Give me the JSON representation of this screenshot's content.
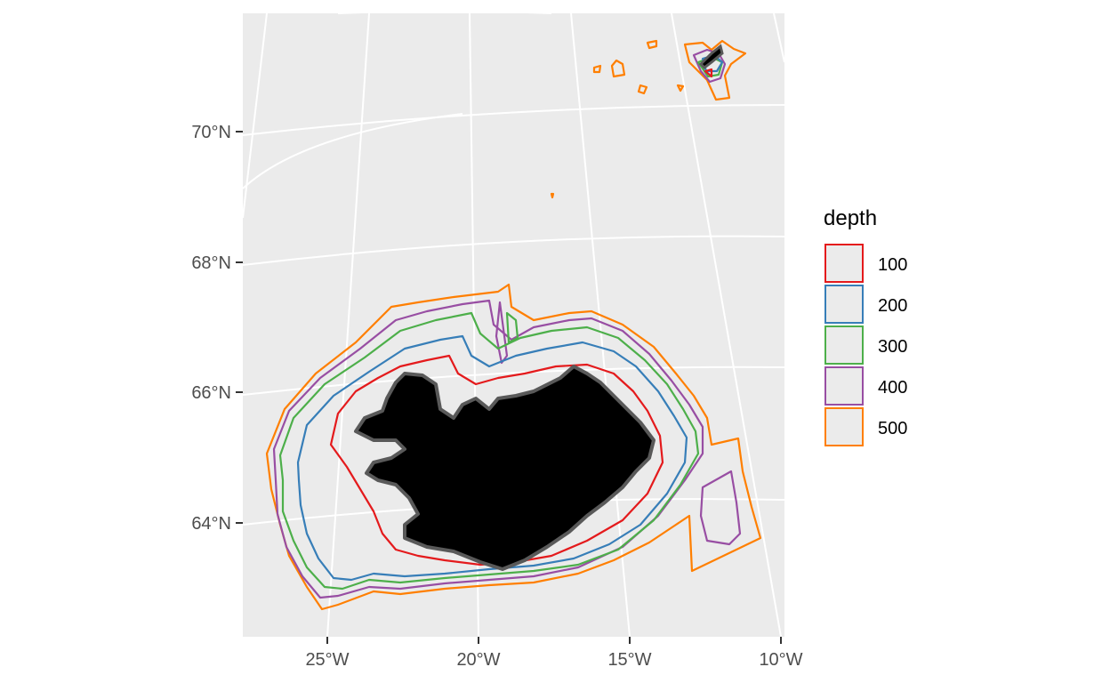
{
  "map": {
    "panel_background": "#ebebeb",
    "grid_color": "#ffffff",
    "land_color": "#000000",
    "land_edge_color": "#595959",
    "x_axis_labels": [
      "25°W",
      "20°W",
      "15°W",
      "10°W"
    ],
    "y_axis_labels": [
      "70°N",
      "68°N",
      "66°N",
      "64°N"
    ]
  },
  "legend": {
    "title": "depth",
    "items": [
      {
        "label": "100",
        "color": "#e41a1c"
      },
      {
        "label": "200",
        "color": "#377eb8"
      },
      {
        "label": "300",
        "color": "#4daf4a"
      },
      {
        "label": "400",
        "color": "#984ea3"
      },
      {
        "label": "500",
        "color": "#ff7f00"
      }
    ]
  }
}
